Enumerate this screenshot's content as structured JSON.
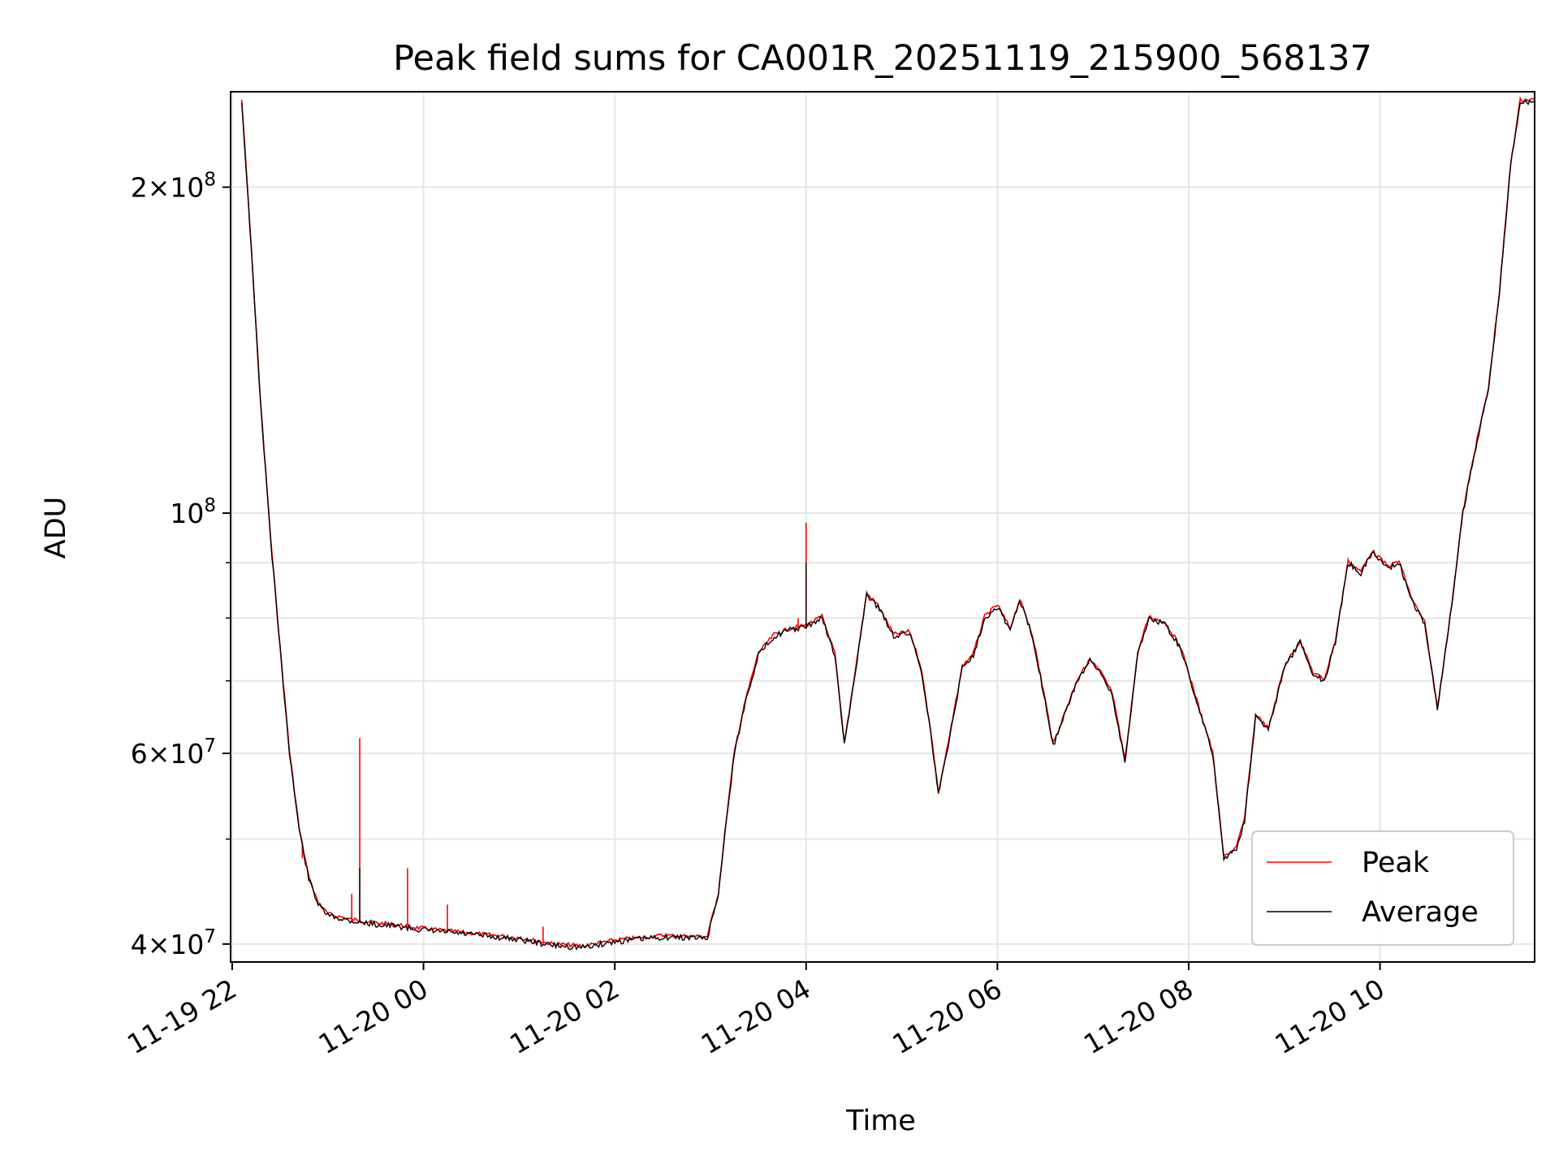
{
  "chart_data": {
    "type": "line",
    "title": "Peak field sums for CA001R_20251119_215900_568137",
    "xlabel": "Time",
    "ylabel": "ADU",
    "y_scale": "log",
    "ylim": [
      38500000,
      245000000
    ],
    "xlim": [
      "2025-11-19 21:59",
      "2025-11-20 11:37"
    ],
    "grid": true,
    "legend_position": "bottom-right",
    "x_ticks": [
      {
        "t": "2025-11-19 22:00",
        "label": "11-19 22"
      },
      {
        "t": "2025-11-20 00:00",
        "label": "11-20 00"
      },
      {
        "t": "2025-11-20 02:00",
        "label": "11-20 02"
      },
      {
        "t": "2025-11-20 04:00",
        "label": "11-20 04"
      },
      {
        "t": "2025-11-20 06:00",
        "label": "11-20 06"
      },
      {
        "t": "2025-11-20 08:00",
        "label": "11-20 08"
      },
      {
        "t": "2025-11-20 10:00",
        "label": "11-20 10"
      }
    ],
    "y_major_ticks": [
      {
        "value": 40000000,
        "base": "4",
        "exp": "7"
      },
      {
        "value": 60000000,
        "base": "6",
        "exp": "7"
      },
      {
        "value": 100000000,
        "base": "",
        "exp": "8"
      },
      {
        "value": 200000000,
        "base": "2",
        "exp": "8"
      }
    ],
    "y_minor_ticks": [
      50000000,
      70000000,
      80000000,
      90000000
    ],
    "series": [
      {
        "name": "Average",
        "color": "#000000",
        "points": [
          [
            "2025-11-19 22:06",
            240000000
          ],
          [
            "2025-11-19 22:12",
            175000000
          ],
          [
            "2025-11-19 22:18",
            125000000
          ],
          [
            "2025-11-19 22:24",
            95000000
          ],
          [
            "2025-11-19 22:30",
            75000000
          ],
          [
            "2025-11-19 22:36",
            60000000
          ],
          [
            "2025-11-19 22:42",
            51000000
          ],
          [
            "2025-11-19 22:48",
            46000000
          ],
          [
            "2025-11-19 22:54",
            43500000
          ],
          [
            "2025-11-19 23:00",
            42500000
          ],
          [
            "2025-11-19 23:15",
            42000000
          ],
          [
            "2025-11-19 23:30",
            41700000
          ],
          [
            "2025-11-19 23:45",
            41500000
          ],
          [
            "2025-11-20 00:00",
            41200000
          ],
          [
            "2025-11-20 00:30",
            40800000
          ],
          [
            "2025-11-20 01:00",
            40400000
          ],
          [
            "2025-11-20 01:20",
            39900000
          ],
          [
            "2025-11-20 01:40",
            39700000
          ],
          [
            "2025-11-20 02:00",
            40200000
          ],
          [
            "2025-11-20 02:30",
            40600000
          ],
          [
            "2025-11-20 02:58",
            40500000
          ],
          [
            "2025-11-20 03:05",
            44500000
          ],
          [
            "2025-11-20 03:10",
            52000000
          ],
          [
            "2025-11-20 03:15",
            60000000
          ],
          [
            "2025-11-20 03:22",
            67000000
          ],
          [
            "2025-11-20 03:30",
            74000000
          ],
          [
            "2025-11-20 03:40",
            77000000
          ],
          [
            "2025-11-20 03:50",
            78000000
          ],
          [
            "2025-11-20 04:00",
            78500000
          ],
          [
            "2025-11-20 04:10",
            80000000
          ],
          [
            "2025-11-20 04:18",
            74000000
          ],
          [
            "2025-11-20 04:24",
            61000000
          ],
          [
            "2025-11-20 04:30",
            70000000
          ],
          [
            "2025-11-20 04:38",
            84000000
          ],
          [
            "2025-11-20 04:45",
            82000000
          ],
          [
            "2025-11-20 04:55",
            77000000
          ],
          [
            "2025-11-20 05:05",
            77500000
          ],
          [
            "2025-11-20 05:12",
            72000000
          ],
          [
            "2025-11-20 05:18",
            63000000
          ],
          [
            "2025-11-20 05:23",
            55000000
          ],
          [
            "2025-11-20 05:30",
            62000000
          ],
          [
            "2025-11-20 05:38",
            72000000
          ],
          [
            "2025-11-20 05:45",
            74000000
          ],
          [
            "2025-11-20 05:52",
            80000000
          ],
          [
            "2025-11-20 06:00",
            82000000
          ],
          [
            "2025-11-20 06:08",
            78000000
          ],
          [
            "2025-11-20 06:14",
            83000000
          ],
          [
            "2025-11-20 06:22",
            77000000
          ],
          [
            "2025-11-20 06:30",
            67000000
          ],
          [
            "2025-11-20 06:35",
            61000000
          ],
          [
            "2025-11-20 06:42",
            65000000
          ],
          [
            "2025-11-20 06:50",
            70000000
          ],
          [
            "2025-11-20 06:58",
            73000000
          ],
          [
            "2025-11-20 07:05",
            71000000
          ],
          [
            "2025-11-20 07:12",
            68000000
          ],
          [
            "2025-11-20 07:20",
            59000000
          ],
          [
            "2025-11-20 07:28",
            74000000
          ],
          [
            "2025-11-20 07:35",
            80000000
          ],
          [
            "2025-11-20 07:45",
            79000000
          ],
          [
            "2025-11-20 07:55",
            75000000
          ],
          [
            "2025-11-20 08:05",
            67000000
          ],
          [
            "2025-11-20 08:15",
            60000000
          ],
          [
            "2025-11-20 08:22",
            48000000
          ],
          [
            "2025-11-20 08:30",
            49000000
          ],
          [
            "2025-11-20 08:35",
            52000000
          ],
          [
            "2025-11-20 08:42",
            65000000
          ],
          [
            "2025-11-20 08:50",
            63000000
          ],
          [
            "2025-11-20 09:00",
            72000000
          ],
          [
            "2025-11-20 09:10",
            76000000
          ],
          [
            "2025-11-20 09:18",
            71000000
          ],
          [
            "2025-11-20 09:25",
            70000000
          ],
          [
            "2025-11-20 09:32",
            76000000
          ],
          [
            "2025-11-20 09:40",
            90000000
          ],
          [
            "2025-11-20 09:48",
            88000000
          ],
          [
            "2025-11-20 09:55",
            92000000
          ],
          [
            "2025-11-20 10:05",
            89000000
          ],
          [
            "2025-11-20 10:12",
            90000000
          ],
          [
            "2025-11-20 10:20",
            83000000
          ],
          [
            "2025-11-20 10:28",
            79000000
          ],
          [
            "2025-11-20 10:36",
            66000000
          ],
          [
            "2025-11-20 10:44",
            80000000
          ],
          [
            "2025-11-20 10:52",
            100000000
          ],
          [
            "2025-11-20 11:00",
            115000000
          ],
          [
            "2025-11-20 11:08",
            130000000
          ],
          [
            "2025-11-20 11:15",
            160000000
          ],
          [
            "2025-11-20 11:22",
            210000000
          ],
          [
            "2025-11-20 11:28",
            240000000
          ],
          [
            "2025-11-20 11:37",
            240000000
          ]
        ]
      },
      {
        "name": "Peak",
        "color": "#ff0000",
        "note_spikes": [
          [
            "2025-11-19 22:44",
            48000000
          ],
          [
            "2025-11-19 23:15",
            44500000
          ],
          [
            "2025-11-19 23:20",
            62000000
          ],
          [
            "2025-11-19 23:50",
            47000000
          ],
          [
            "2025-11-20 00:15",
            43500000
          ],
          [
            "2025-11-20 01:15",
            41500000
          ],
          [
            "2025-11-20 03:55",
            80000000
          ],
          [
            "2025-11-20 04:00",
            98000000
          ]
        ]
      }
    ]
  }
}
